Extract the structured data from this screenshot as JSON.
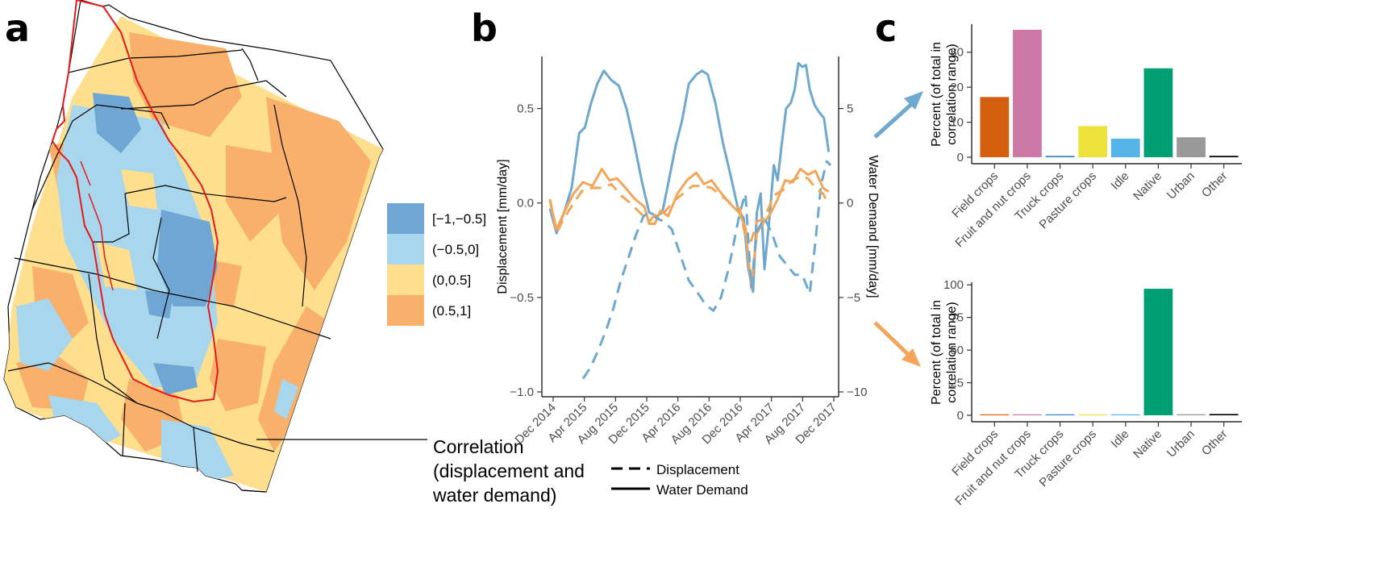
{
  "panel_labels": [
    "a",
    "b",
    "c"
  ],
  "colors": {
    "neg_strong": "#6fa6d4",
    "neg_weak": "#a8d6ec",
    "pos_weak": "#fddf8e",
    "pos_strong": "#f8b06b",
    "boundary": "#e41a1c",
    "line_blue": "#6fa8cf",
    "line_orange": "#f3a55a"
  },
  "chart_data": [
    {
      "id": "map-correlation",
      "type": "heatmap",
      "legend_items": [
        {
          "label": "[−1,−0.5]",
          "color": "#6fa6d4"
        },
        {
          "label": "(−0.5,0]",
          "color": "#a8d6ec"
        },
        {
          "label": "(0,0.5]",
          "color": "#fddf8e"
        },
        {
          "label": "(0.5,1]",
          "color": "#f8b06b"
        }
      ],
      "annotation_lines": [
        "Correlation",
        "(displacement and",
        "water demand)"
      ]
    },
    {
      "id": "timeseries",
      "type": "line",
      "ylabel": "Displacement [mm/day]",
      "y2label": "Water Demand [mm/day]",
      "ylim": [
        -1.0,
        0.75
      ],
      "y2lim": [
        -10,
        7.5
      ],
      "yticks": [
        -1.0,
        -0.5,
        0.0,
        0.5
      ],
      "yticklabels": [
        "−1.0",
        "−0.5",
        "0.0",
        "0.5"
      ],
      "y2ticks": [
        -10,
        -5,
        0,
        5
      ],
      "y2ticklabels": [
        "−10",
        "−5",
        "0",
        "5"
      ],
      "xticklabels": [
        "Dec 2014",
        "Apr 2015",
        "Aug 2015",
        "Dec 2015",
        "Apr 2016",
        "Aug 2016",
        "Dec 2016",
        "Apr 2017",
        "Aug 2017",
        "Dec 2017"
      ],
      "x_start": "2014-12",
      "x_end": "2017-12",
      "legend": [
        {
          "label": "Displacement",
          "style": "dashed"
        },
        {
          "label": "Water Demand",
          "style": "solid"
        }
      ],
      "series": [
        {
          "color": "#6fa8cf",
          "style": "solid",
          "axis": "right",
          "x": [
            2014.95,
            2015.02,
            2015.1,
            2015.18,
            2015.26,
            2015.32,
            2015.38,
            2015.45,
            2015.52,
            2015.6,
            2015.68,
            2015.76,
            2015.84,
            2015.92,
            2016.0,
            2016.08,
            2016.14,
            2016.2,
            2016.28,
            2016.35,
            2016.42,
            2016.5,
            2016.56,
            2016.62,
            2016.7,
            2016.78,
            2016.86,
            2016.94,
            2017.0,
            2017.05,
            2017.1,
            2017.14,
            2017.18,
            2017.22,
            2017.27,
            2017.32,
            2017.36,
            2017.4,
            2017.45,
            2017.5,
            2017.54,
            2017.58,
            2017.62,
            2017.66,
            2017.7,
            2017.75,
            2017.8,
            2017.85,
            2017.9
          ],
          "values": [
            -0.3,
            -1.6,
            -0.5,
            0.8,
            3.7,
            4.0,
            5.2,
            6.3,
            7.0,
            6.5,
            6.2,
            5.0,
            3.2,
            1.2,
            -0.5,
            -0.7,
            -0.5,
            1.0,
            3.0,
            4.4,
            6.3,
            6.8,
            7.0,
            6.8,
            5.3,
            3.2,
            1.5,
            -0.3,
            -0.8,
            -3.5,
            -4.7,
            -0.5,
            0.5,
            -3.5,
            -1.0,
            2.0,
            1.2,
            3.0,
            5.0,
            5.3,
            6.0,
            7.4,
            7.2,
            7.3,
            6.0,
            5.2,
            4.8,
            4.5,
            2.7
          ]
        },
        {
          "color": "#f3a55a",
          "style": "solid",
          "axis": "right",
          "x": [
            2014.95,
            2015.02,
            2015.1,
            2015.2,
            2015.3,
            2015.4,
            2015.5,
            2015.58,
            2015.66,
            2015.75,
            2015.85,
            2015.95,
            2016.0,
            2016.06,
            2016.12,
            2016.2,
            2016.3,
            2016.4,
            2016.5,
            2016.58,
            2016.66,
            2016.75,
            2016.85,
            2016.95,
            2017.02,
            2017.08,
            2017.14,
            2017.2,
            2017.28,
            2017.36,
            2017.44,
            2017.52,
            2017.6,
            2017.68,
            2017.76,
            2017.84,
            2017.9
          ],
          "values": [
            0.1,
            -1.4,
            -0.5,
            0.5,
            1.1,
            0.9,
            1.8,
            1.2,
            1.3,
            0.8,
            0.2,
            -0.2,
            -1.1,
            -1.1,
            -0.4,
            -0.7,
            0.5,
            1.2,
            1.6,
            1.0,
            1.2,
            0.6,
            0.0,
            -0.5,
            -1.3,
            -4.5,
            -1.6,
            -1.1,
            -0.6,
            0.2,
            1.2,
            1.1,
            1.8,
            1.5,
            1.7,
            0.8,
            0.6
          ]
        },
        {
          "color": "#6fa8cf",
          "style": "dashed",
          "axis": "left",
          "x": [
            2015.3,
            2015.38,
            2015.46,
            2015.54,
            2015.62,
            2015.7,
            2015.78,
            2015.86,
            2015.94,
            2016.0,
            2016.08,
            2016.16,
            2016.24,
            2016.32,
            2016.42,
            2016.52,
            2016.6,
            2016.68,
            2016.76,
            2016.84,
            2016.9,
            2016.96,
            2017.02,
            2017.08,
            2017.14,
            2017.22,
            2017.3,
            2017.38,
            2017.46,
            2017.54,
            2017.62,
            2017.7,
            2017.76,
            2017.82,
            2017.88,
            2017.92
          ],
          "values": [
            -0.93,
            -0.87,
            -0.78,
            -0.68,
            -0.56,
            -0.41,
            -0.29,
            -0.17,
            -0.07,
            -0.05,
            -0.08,
            -0.1,
            -0.14,
            -0.26,
            -0.41,
            -0.48,
            -0.54,
            -0.57,
            -0.5,
            -0.35,
            -0.2,
            -0.05,
            0.05,
            -0.45,
            -0.15,
            -0.08,
            -0.16,
            -0.28,
            -0.33,
            -0.38,
            -0.38,
            -0.48,
            -0.2,
            0.1,
            0.22,
            0.2
          ]
        },
        {
          "color": "#f3a55a",
          "style": "dashed",
          "axis": "left",
          "x": [
            2014.95,
            2015.02,
            2015.1,
            2015.2,
            2015.3,
            2015.4,
            2015.5,
            2015.6,
            2015.7,
            2015.8,
            2015.9,
            2016.0,
            2016.08,
            2016.16,
            2016.26,
            2016.36,
            2016.46,
            2016.56,
            2016.66,
            2016.76,
            2016.86,
            2016.96,
            2017.02,
            2017.08,
            2017.14,
            2017.22,
            2017.32,
            2017.42,
            2017.52,
            2017.6,
            2017.68,
            2017.76,
            2017.84,
            2017.9
          ],
          "values": [
            0.02,
            -0.16,
            -0.08,
            0.0,
            0.07,
            0.08,
            0.08,
            0.1,
            0.04,
            0.0,
            -0.05,
            -0.1,
            -0.05,
            -0.05,
            0.01,
            0.05,
            0.09,
            0.09,
            0.08,
            0.04,
            0.0,
            -0.03,
            -0.18,
            -0.2,
            -0.1,
            -0.08,
            0.04,
            0.07,
            0.12,
            0.14,
            0.13,
            0.08,
            0.05,
            -0.01
          ]
        }
      ]
    },
    {
      "id": "landuse-top",
      "type": "bar",
      "ylabel_lines": [
        "Percent (of total in",
        "correlation range)"
      ],
      "ylim": [
        0,
        38
      ],
      "yticks": [
        0,
        10,
        20,
        30
      ],
      "categories": [
        "Field crops",
        "Fruit and nut crops",
        "Truck crops",
        "Pasture crops",
        "Idle",
        "Native",
        "Urban",
        "Other"
      ],
      "values": [
        17.2,
        36.4,
        0.4,
        8.9,
        5.3,
        25.4,
        5.7,
        0.4
      ],
      "bar_colors": [
        "#d45f0e",
        "#cc79a7",
        "#3b87c4",
        "#ede13c",
        "#56b4e9",
        "#009e73",
        "#999999",
        "#000000"
      ]
    },
    {
      "id": "landuse-bottom",
      "type": "bar",
      "ylabel_lines": [
        "Percent (of total in",
        "correlation range)"
      ],
      "ylim": [
        0,
        102
      ],
      "yticks": [
        0,
        25,
        50,
        75,
        100
      ],
      "categories": [
        "Field crops",
        "Fruit and nut crops",
        "Truck crops",
        "Pasture crops",
        "Idle",
        "Native",
        "Urban",
        "Other"
      ],
      "values": [
        0.2,
        0.3,
        0.0,
        0.0,
        0.6,
        97.0,
        0.8,
        1.0
      ],
      "bar_colors": [
        "#d45f0e",
        "#cc79a7",
        "#3b87c4",
        "#ede13c",
        "#56b4e9",
        "#009e73",
        "#999999",
        "#000000"
      ]
    }
  ]
}
